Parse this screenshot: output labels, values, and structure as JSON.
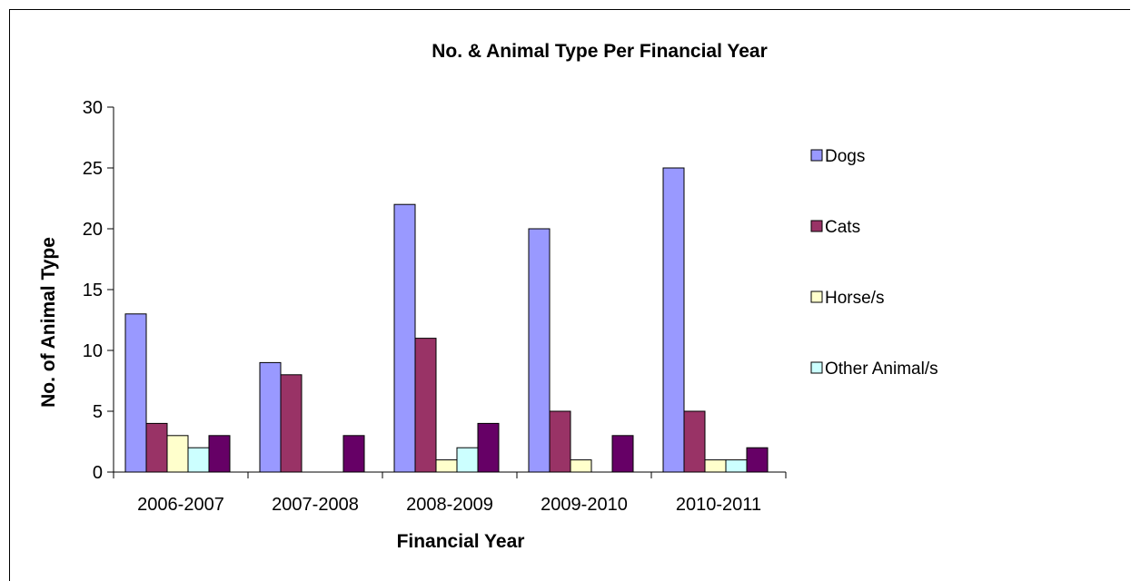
{
  "chart_data": {
    "type": "bar",
    "title": "No. & Animal Type Per Financial Year",
    "xlabel": "Financial Year",
    "ylabel": "No. of Animal Type",
    "categories": [
      "2006-2007",
      "2007-2008",
      "2008-2009",
      "2009-2010",
      "2010-2011"
    ],
    "series": [
      {
        "name": "Dogs",
        "color": "#9999ff",
        "values": [
          13,
          9,
          22,
          20,
          25
        ]
      },
      {
        "name": "Cats",
        "color": "#993366",
        "values": [
          4,
          8,
          11,
          5,
          5
        ]
      },
      {
        "name": "Horse/s",
        "color": "#ffffcc",
        "values": [
          3,
          0,
          1,
          1,
          1
        ]
      },
      {
        "name": "Other Animal/s",
        "color": "#ccffff",
        "values": [
          2,
          0,
          2,
          0,
          1
        ]
      },
      {
        "color": "#660066",
        "values": [
          3,
          3,
          4,
          3,
          2
        ]
      }
    ],
    "ylim": [
      0,
      30
    ],
    "yticks": [
      0,
      5,
      10,
      15,
      20,
      25,
      30
    ],
    "grid": false,
    "legend": "right"
  }
}
